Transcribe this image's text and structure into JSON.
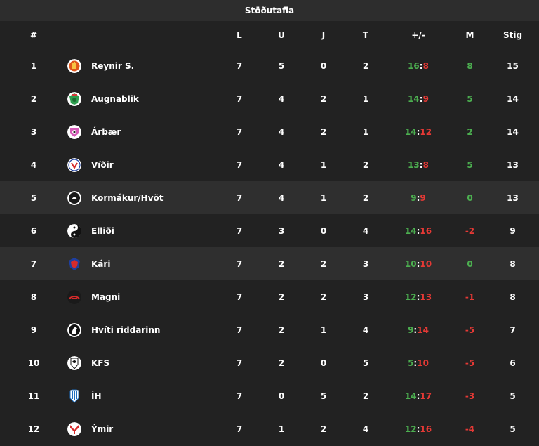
{
  "title": "Stöðutafla",
  "columns": {
    "rank": "#",
    "played": "L",
    "wins": "U",
    "draws": "J",
    "losses": "T",
    "goals": "+/-",
    "goal_diff": "M",
    "points": "Stig"
  },
  "colors": {
    "positive": "#4caf50",
    "negative": "#e53935",
    "background": "#222222",
    "highlight_row": "#2f2f2f"
  },
  "rows": [
    {
      "rank": "1",
      "team": "Reynir S.",
      "logo": "reynir-crest-icon",
      "played": "7",
      "wins": "5",
      "draws": "0",
      "losses": "2",
      "gf": "16",
      "ga": "8",
      "gd": "8",
      "points": "15"
    },
    {
      "rank": "2",
      "team": "Augnablik",
      "logo": "augnablik-crest-icon",
      "played": "7",
      "wins": "4",
      "draws": "2",
      "losses": "1",
      "gf": "14",
      "ga": "9",
      "gd": "5",
      "points": "14"
    },
    {
      "rank": "3",
      "team": "Árbær",
      "logo": "arbaer-crest-icon",
      "played": "7",
      "wins": "4",
      "draws": "2",
      "losses": "1",
      "gf": "14",
      "ga": "12",
      "gd": "2",
      "points": "14"
    },
    {
      "rank": "4",
      "team": "Víðir",
      "logo": "vidir-crest-icon",
      "played": "7",
      "wins": "4",
      "draws": "1",
      "losses": "2",
      "gf": "13",
      "ga": "8",
      "gd": "5",
      "points": "13"
    },
    {
      "rank": "5",
      "team": "Kormákur/Hvöt",
      "logo": "kormakur-crest-icon",
      "played": "7",
      "wins": "4",
      "draws": "1",
      "losses": "2",
      "gf": "9",
      "ga": "9",
      "gd": "0",
      "points": "13",
      "highlight": true
    },
    {
      "rank": "6",
      "team": "Elliði",
      "logo": "ellidi-crest-icon",
      "played": "7",
      "wins": "3",
      "draws": "0",
      "losses": "4",
      "gf": "14",
      "ga": "16",
      "gd": "-2",
      "points": "9"
    },
    {
      "rank": "7",
      "team": "Kári",
      "logo": "kari-crest-icon",
      "played": "7",
      "wins": "2",
      "draws": "2",
      "losses": "3",
      "gf": "10",
      "ga": "10",
      "gd": "0",
      "points": "8",
      "highlight": true
    },
    {
      "rank": "8",
      "team": "Magni",
      "logo": "magni-crest-icon",
      "played": "7",
      "wins": "2",
      "draws": "2",
      "losses": "3",
      "gf": "12",
      "ga": "13",
      "gd": "-1",
      "points": "8"
    },
    {
      "rank": "9",
      "team": "Hvíti riddarinn",
      "logo": "hviti-riddarinn-crest-icon",
      "played": "7",
      "wins": "2",
      "draws": "1",
      "losses": "4",
      "gf": "9",
      "ga": "14",
      "gd": "-5",
      "points": "7"
    },
    {
      "rank": "10",
      "team": "KFS",
      "logo": "kfs-crest-icon",
      "played": "7",
      "wins": "2",
      "draws": "0",
      "losses": "5",
      "gf": "5",
      "ga": "10",
      "gd": "-5",
      "points": "6"
    },
    {
      "rank": "11",
      "team": "ÍH",
      "logo": "ih-crest-icon",
      "played": "7",
      "wins": "0",
      "draws": "5",
      "losses": "2",
      "gf": "14",
      "ga": "17",
      "gd": "-3",
      "points": "5"
    },
    {
      "rank": "12",
      "team": "Ýmir",
      "logo": "ymir-crest-icon",
      "played": "7",
      "wins": "1",
      "draws": "2",
      "losses": "4",
      "gf": "12",
      "ga": "16",
      "gd": "-4",
      "points": "5"
    }
  ]
}
